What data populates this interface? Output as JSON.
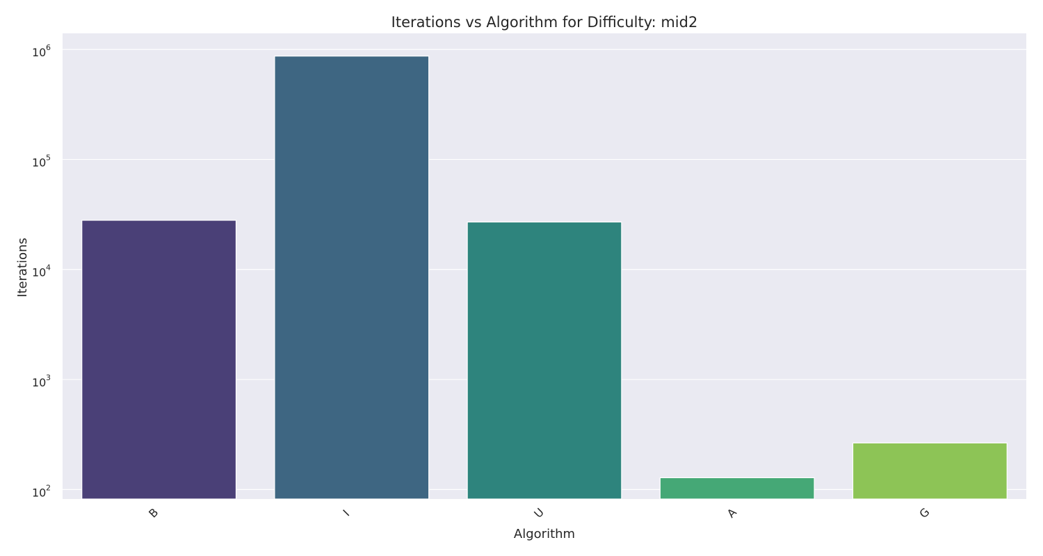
{
  "chart_data": {
    "type": "bar",
    "title": "Iterations vs Algorithm for Difficulty: mid2",
    "xlabel": "Algorithm",
    "ylabel": "Iterations",
    "yscale": "log",
    "ylim": [
      82,
      1400000
    ],
    "yticks": [
      {
        "value": 100,
        "base": "10",
        "exp": "2"
      },
      {
        "value": 1000,
        "base": "10",
        "exp": "3"
      },
      {
        "value": 10000,
        "base": "10",
        "exp": "4"
      },
      {
        "value": 100000,
        "base": "10",
        "exp": "5"
      },
      {
        "value": 1000000,
        "base": "10",
        "exp": "6"
      }
    ],
    "categories": [
      "B",
      "I",
      "U",
      "A",
      "G"
    ],
    "values": [
      28000,
      870000,
      27000,
      128,
      265
    ],
    "colors": [
      "#4a4077",
      "#3e6682",
      "#2e847d",
      "#45a876",
      "#8dc456"
    ],
    "grid": true,
    "background": "#eaeaf2"
  }
}
